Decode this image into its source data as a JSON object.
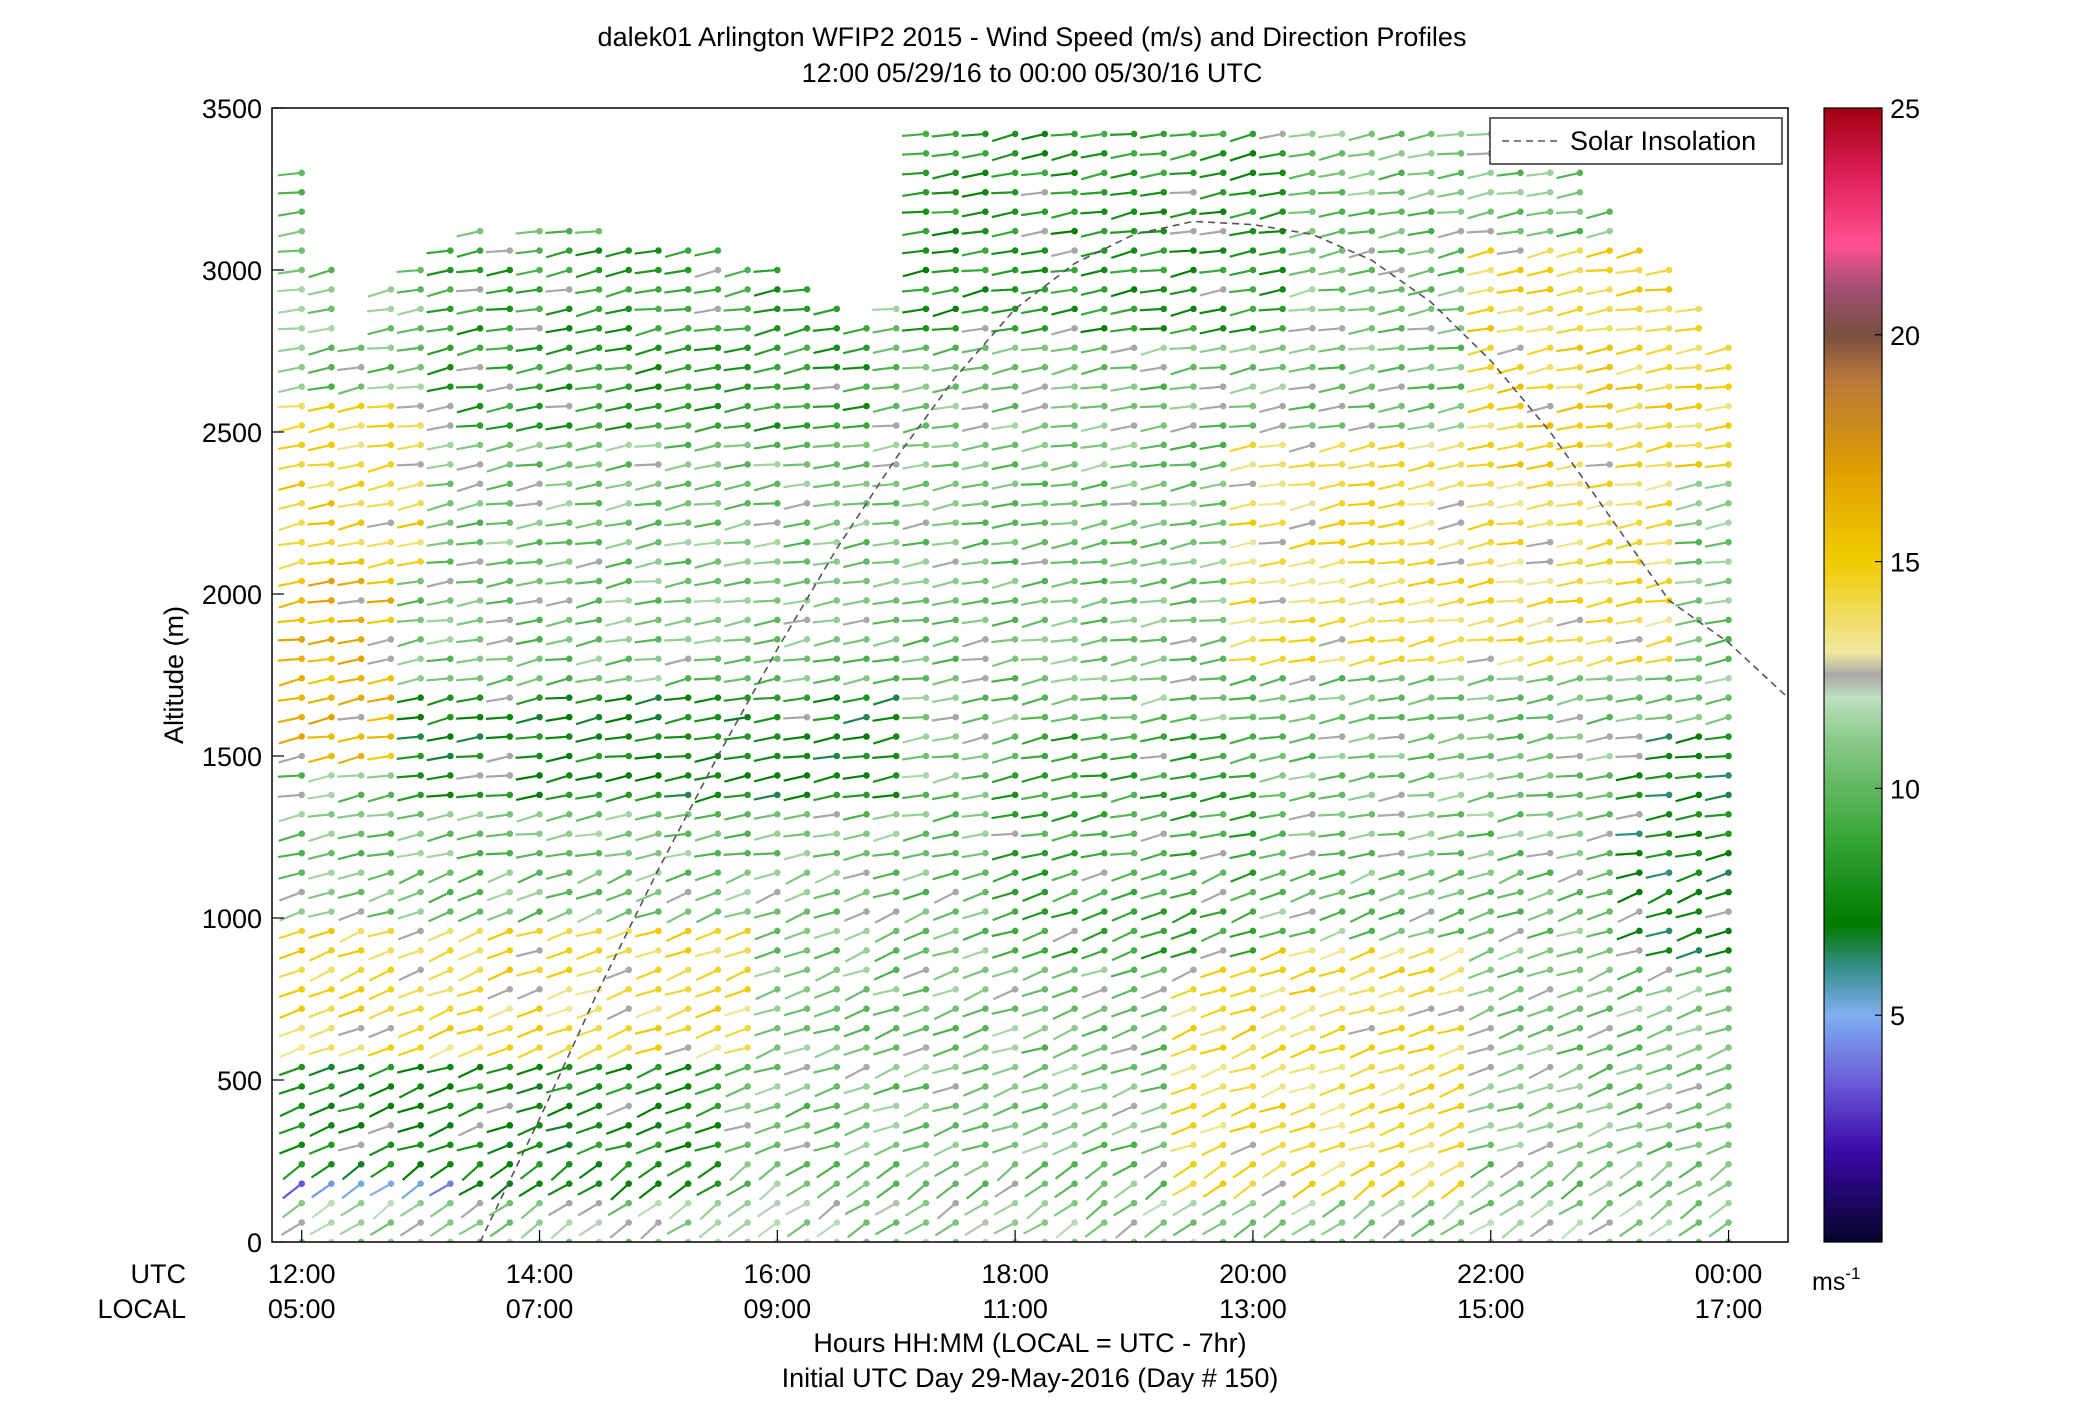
{
  "chart_data": {
    "type": "scatter",
    "title": "dalek01 Arlington WFIP2 2015 - Wind Speed (m/s) and Direction Profiles",
    "subtitle": "12:00 05/29/16 to 00:00 05/30/16  UTC",
    "ylabel": "Altitude (m)",
    "xlabel": "Hours HH:MM  (LOCAL = UTC - 7hr)",
    "footer": "Initial UTC Day 29-May-2016 (Day # 150)",
    "ylim": [
      0,
      3500
    ],
    "yticks": [
      0,
      500,
      1000,
      1500,
      2000,
      2500,
      3000,
      3500
    ],
    "xlim": [
      11.75,
      24.5
    ],
    "xtick_values": [
      12,
      14,
      16,
      18,
      20,
      22,
      24
    ],
    "xrow_labels": [
      "UTC",
      "LOCAL"
    ],
    "xticks_utc": [
      "12:00",
      "14:00",
      "16:00",
      "18:00",
      "20:00",
      "22:00",
      "00:00"
    ],
    "xticks_local": [
      "05:00",
      "07:00",
      "09:00",
      "11:00",
      "13:00",
      "15:00",
      "17:00"
    ],
    "legend": {
      "label": "Solar Insolation",
      "placement": "top-right",
      "style": "dashed",
      "color": "#555555"
    },
    "colorbar": {
      "min": 0,
      "max": 25,
      "ticks": [
        5,
        10,
        15,
        20,
        25
      ],
      "unit_base": "ms",
      "unit_exp": "-1",
      "stops": [
        {
          "v": 0.0,
          "c": "#05052a"
        },
        {
          "v": 2.0,
          "c": "#3a0aa8"
        },
        {
          "v": 3.5,
          "c": "#6a5ad8"
        },
        {
          "v": 5.0,
          "c": "#7fb0f0"
        },
        {
          "v": 6.0,
          "c": "#3a9090"
        },
        {
          "v": 7.0,
          "c": "#007a00"
        },
        {
          "v": 9.0,
          "c": "#3aa83a"
        },
        {
          "v": 11.0,
          "c": "#86c886"
        },
        {
          "v": 12.0,
          "c": "#c0e0c0"
        },
        {
          "v": 12.5,
          "c": "#a8a8a8"
        },
        {
          "v": 13.0,
          "c": "#f0e8a0"
        },
        {
          "v": 15.0,
          "c": "#f0cc00"
        },
        {
          "v": 17.0,
          "c": "#e0a000"
        },
        {
          "v": 19.0,
          "c": "#b8783a"
        },
        {
          "v": 20.0,
          "c": "#7a5040"
        },
        {
          "v": 21.0,
          "c": "#a05070"
        },
        {
          "v": 22.0,
          "c": "#ff5090"
        },
        {
          "v": 23.5,
          "c": "#e0205a"
        },
        {
          "v": 25.0,
          "c": "#a00010"
        }
      ]
    },
    "solar_insolation": {
      "x": [
        13.5,
        14.0,
        14.5,
        15.0,
        15.5,
        16.0,
        16.5,
        17.0,
        17.5,
        18.0,
        18.5,
        19.0,
        19.5,
        20.0,
        20.5,
        21.0,
        21.5,
        22.0,
        22.5,
        23.0,
        23.5,
        24.0,
        24.5
      ],
      "y": [
        0,
        380,
        780,
        1150,
        1500,
        1830,
        2140,
        2420,
        2670,
        2880,
        3020,
        3110,
        3150,
        3140,
        3110,
        3030,
        2900,
        2720,
        2500,
        2240,
        1980,
        1850,
        1680
      ]
    },
    "wind_profile_times_utc": [
      12.0,
      12.25,
      12.5,
      12.75,
      13.0,
      13.25,
      13.5,
      13.75,
      14.0,
      14.25,
      14.5,
      14.75,
      15.0,
      15.25,
      15.5,
      15.75,
      16.0,
      16.25,
      16.5,
      16.75,
      17.0,
      17.25,
      17.5,
      17.75,
      18.0,
      18.25,
      18.5,
      18.75,
      19.0,
      19.25,
      19.5,
      19.75,
      20.0,
      20.25,
      20.5,
      20.75,
      21.0,
      21.25,
      21.5,
      21.75,
      22.0,
      22.25,
      22.5,
      22.75,
      23.0,
      23.25,
      23.5,
      23.75,
      24.0
    ],
    "wind_profile_top_m": [
      3320,
      3050,
      2760,
      2950,
      3050,
      3080,
      3120,
      3100,
      3120,
      3120,
      3120,
      3080,
      3060,
      3060,
      3060,
      3000,
      3000,
      2950,
      2900,
      2820,
      2880,
      3460,
      3460,
      3460,
      3460,
      3460,
      3460,
      3460,
      3460,
      3460,
      3460,
      3460,
      3460,
      3460,
      3460,
      3460,
      3460,
      3460,
      3460,
      3460,
      3460,
      3460,
      3400,
      3300,
      3200,
      3100,
      3050,
      2900,
      2760
    ],
    "wind_level_spacing_m": 60,
    "wind_regions": [
      {
        "t": [
          12.0,
          24.0
        ],
        "z": [
          0,
          3500
        ],
        "speed": 10.5
      },
      {
        "t": [
          12.0,
          13.5
        ],
        "z": [
          0,
          220
        ],
        "speed": 4.2
      },
      {
        "t": [
          12.0,
          13.75
        ],
        "z": [
          220,
          550
        ],
        "speed": 7.5
      },
      {
        "t": [
          13.5,
          15.5
        ],
        "z": [
          0,
          550
        ],
        "speed": 7.8
      },
      {
        "t": [
          12.0,
          15.75
        ],
        "z": [
          550,
          1000
        ],
        "speed": 14.2
      },
      {
        "t": [
          12.0,
          12.75
        ],
        "z": [
          1500,
          2050
        ],
        "speed": 16.0
      },
      {
        "t": [
          12.0,
          13.0
        ],
        "z": [
          2050,
          2600
        ],
        "speed": 14.5
      },
      {
        "t": [
          13.0,
          17.0
        ],
        "z": [
          1350,
          1700
        ],
        "speed": 7.5
      },
      {
        "t": [
          13.25,
          16.75
        ],
        "z": [
          2500,
          3100
        ],
        "speed": 8.5
      },
      {
        "t": [
          17.25,
          20.25
        ],
        "z": [
          2800,
          3460
        ],
        "speed": 8.2
      },
      {
        "t": [
          19.5,
          21.75
        ],
        "z": [
          0,
          900
        ],
        "speed": 14.2
      },
      {
        "t": [
          20.0,
          23.5
        ],
        "z": [
          1800,
          2500
        ],
        "speed": 14.0
      },
      {
        "t": [
          22.0,
          24.0
        ],
        "z": [
          2400,
          3100
        ],
        "speed": 14.5
      },
      {
        "t": [
          18.0,
          20.0
        ],
        "z": [
          900,
          1600
        ],
        "speed": 9.0
      },
      {
        "t": [
          23.25,
          24.0
        ],
        "z": [
          900,
          1600
        ],
        "speed": 7.2
      },
      {
        "t": [
          12.0,
          24.0
        ],
        "z": [
          0,
          120
        ],
        "speed": 11.2
      }
    ]
  }
}
